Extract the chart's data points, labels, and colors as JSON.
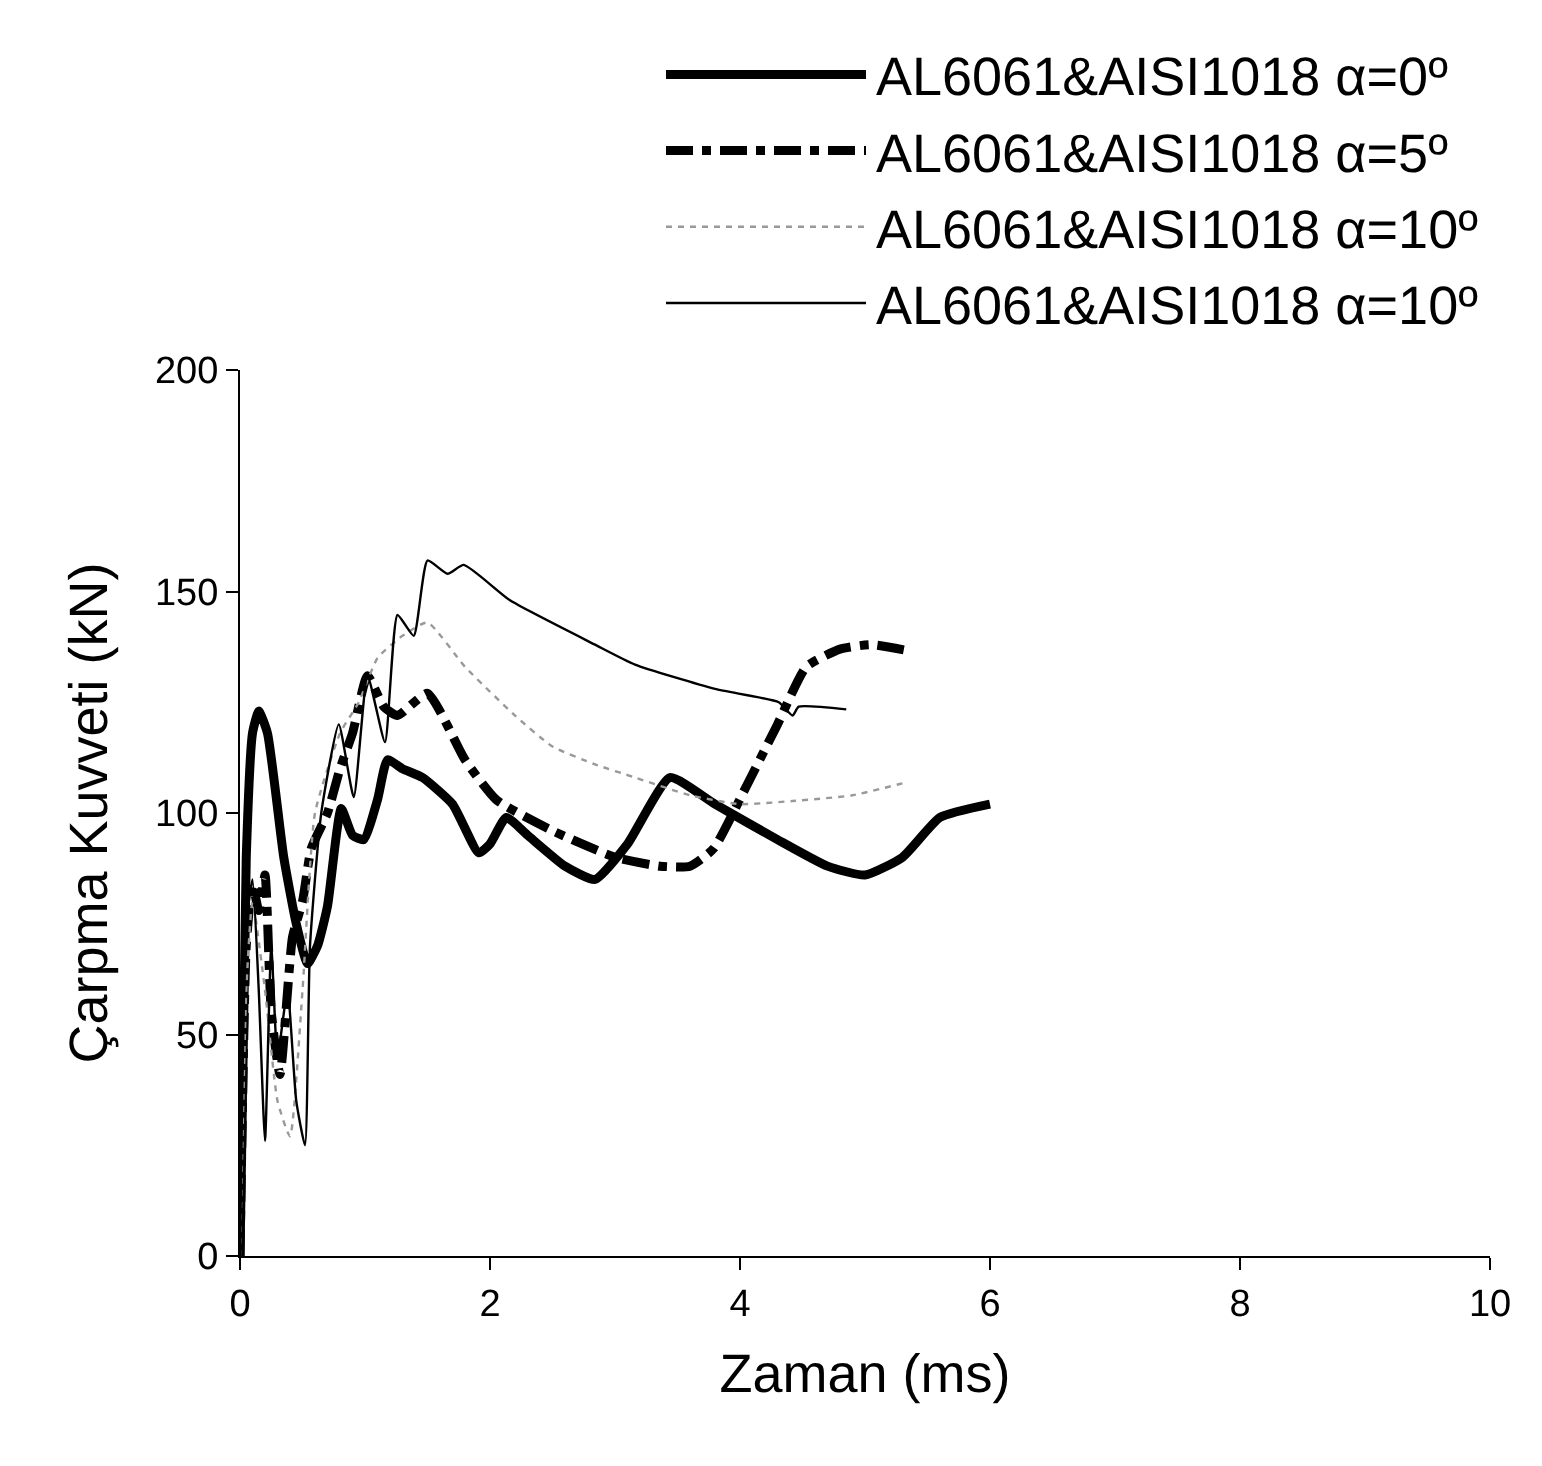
{
  "chart_data": {
    "type": "line",
    "xlabel": "Zaman (ms)",
    "ylabel": "Çarpma Kuvveti (kN)",
    "xlim": [
      0,
      10
    ],
    "xticks": [
      0,
      2,
      4,
      6,
      8,
      10
    ],
    "ylim": [
      0,
      200
    ],
    "yticks": [
      0,
      50,
      100,
      150,
      200
    ],
    "legend": "top",
    "marker": "none",
    "series": [
      {
        "name": "AL6061&AISI1018 α=0º",
        "color": "#000000",
        "line_style": "solid",
        "x": [
          0,
          0.05,
          0.1,
          0.15,
          0.22,
          0.35,
          0.45,
          0.54,
          0.62,
          0.7,
          0.81,
          0.9,
          0.99,
          1.1,
          1.18,
          1.3,
          1.46,
          1.7,
          1.91,
          2.0,
          2.13,
          2.3,
          2.6,
          2.84,
          3.1,
          3.44,
          3.8,
          4.3,
          4.7,
          5.0,
          5.3,
          5.6,
          6.0
        ],
        "values": [
          0,
          90,
          118,
          123,
          118,
          90,
          75,
          66,
          70,
          79,
          101,
          95,
          94,
          103,
          112,
          110,
          108,
          102,
          91,
          93,
          99,
          95,
          88,
          85,
          93,
          108,
          102,
          94,
          88,
          86,
          90,
          99,
          102
        ]
      },
      {
        "name": "AL6061&AISI1018 α=5º",
        "color": "#000000",
        "line_style": "dashdot",
        "x": [
          0,
          0.05,
          0.1,
          0.15,
          0.2,
          0.25,
          0.32,
          0.42,
          0.5,
          0.57,
          0.7,
          0.8,
          0.9,
          1.02,
          1.15,
          1.26,
          1.5,
          1.8,
          2.05,
          2.5,
          3.0,
          3.36,
          3.6,
          3.79,
          4.05,
          4.3,
          4.53,
          4.8,
          5.05,
          5.37
        ],
        "values": [
          0,
          70,
          84,
          78,
          86,
          55,
          41,
          72,
          80,
          92,
          100,
          110,
          118,
          131,
          124,
          122,
          127,
          112,
          103,
          96,
          90,
          88,
          88,
          92,
          106,
          120,
          133,
          137,
          138,
          136.5
        ]
      },
      {
        "name": "AL6061&AISI1018 α=10º",
        "color": "#999999",
        "line_style": "dotted",
        "x": [
          0,
          0.05,
          0.1,
          0.2,
          0.3,
          0.4,
          0.5,
          0.6,
          0.8,
          0.95,
          1.1,
          1.3,
          1.5,
          1.8,
          2.2,
          2.5,
          2.84,
          3.16,
          3.6,
          4.0,
          4.42,
          4.9,
          5.34
        ],
        "values": [
          0,
          60,
          80,
          60,
          35,
          27,
          60,
          100,
          118,
          125,
          135,
          140,
          143,
          133,
          122,
          115,
          111,
          108,
          104,
          102,
          102.7,
          104,
          107
        ]
      },
      {
        "name": "AL6061&AISI1018 α=10º",
        "color": "#000000",
        "line_style": "solid",
        "x": [
          0,
          0.05,
          0.1,
          0.15,
          0.2,
          0.25,
          0.3,
          0.38,
          0.45,
          0.52,
          0.56,
          0.65,
          0.79,
          0.91,
          1.02,
          1.16,
          1.26,
          1.39,
          1.5,
          1.66,
          1.79,
          2.16,
          2.84,
          3.16,
          3.8,
          4.31,
          4.42,
          4.47,
          4.85
        ],
        "values": [
          0,
          75,
          85,
          60,
          26,
          70,
          45,
          60,
          35,
          25,
          70,
          100,
          120,
          103.6,
          131,
          116,
          144.7,
          140,
          157,
          154,
          156,
          148,
          138,
          133.5,
          128,
          125,
          122,
          124,
          123.4
        ]
      }
    ]
  }
}
